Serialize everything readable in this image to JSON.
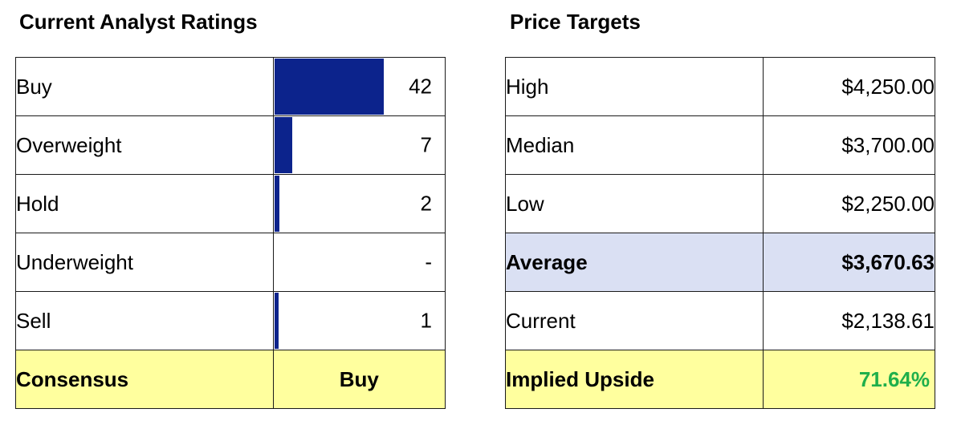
{
  "ratings": {
    "title": "Current Analyst Ratings",
    "rows": [
      {
        "label": "Buy",
        "value": 42,
        "display": "42"
      },
      {
        "label": "Overweight",
        "value": 7,
        "display": "7"
      },
      {
        "label": "Hold",
        "value": 2,
        "display": "2"
      },
      {
        "label": "Underweight",
        "value": 0,
        "display": "-"
      },
      {
        "label": "Sell",
        "value": 1,
        "display": "1"
      }
    ],
    "consensus_label": "Consensus",
    "consensus_value": "Buy",
    "bar_color": "#0c238c"
  },
  "price_targets": {
    "title": "Price Targets",
    "rows": [
      {
        "label": "High",
        "value": "$4,250.00"
      },
      {
        "label": "Median",
        "value": "$3,700.00"
      },
      {
        "label": "Low",
        "value": "$2,250.00"
      },
      {
        "label": "Average",
        "value": "$3,670.63"
      },
      {
        "label": "Current",
        "value": "$2,138.61"
      }
    ],
    "implied_upside_label": "Implied Upside",
    "implied_upside_value": "71.64%"
  },
  "chart_data": {
    "type": "bar",
    "categories": [
      "Buy",
      "Overweight",
      "Hold",
      "Underweight",
      "Sell"
    ],
    "values": [
      42,
      7,
      2,
      0,
      1
    ]
  },
  "colors": {
    "consensus_bg": "#ffff9e",
    "average_bg": "#dae0f3",
    "upside_text": "#1faf4b"
  }
}
